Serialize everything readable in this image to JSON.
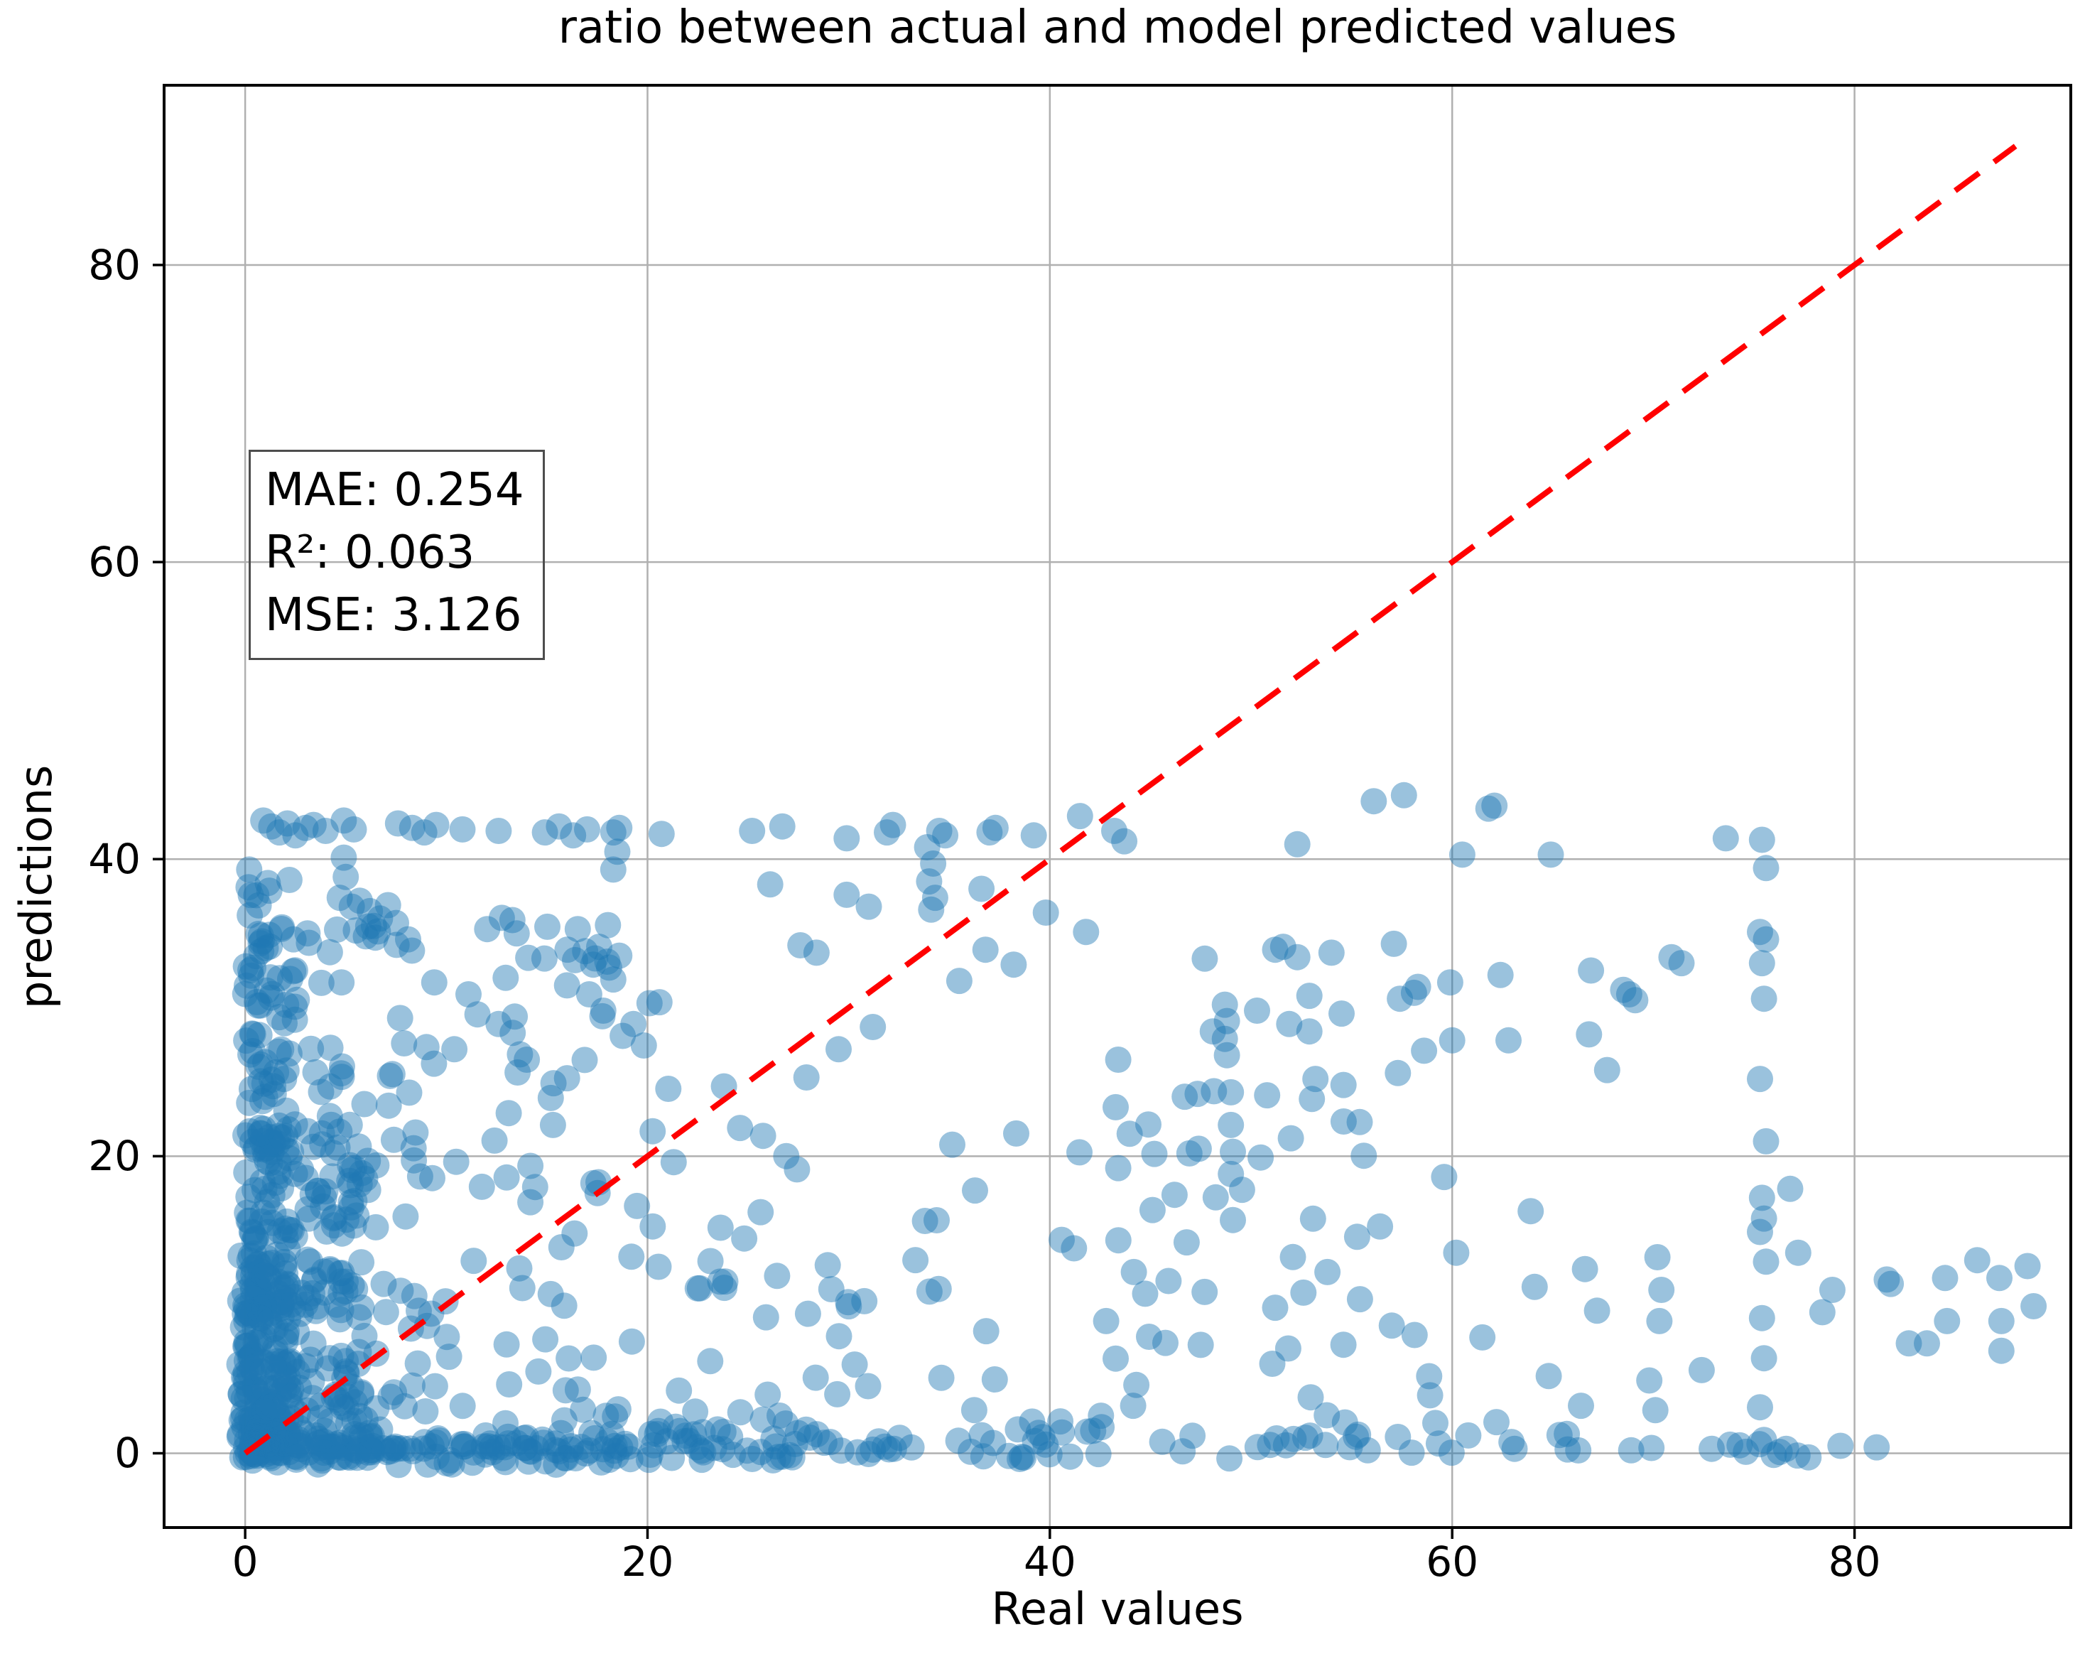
{
  "figure": {
    "title": "ratio between actual and model predicted values",
    "xlabel": "Real values",
    "ylabel": "predictions",
    "stats_box": {
      "lines": [
        "MAE: 0.254",
        "R²: 0.063",
        "MSE: 3.126"
      ]
    }
  },
  "chart_data": {
    "type": "scatter",
    "title": "ratio between actual and model predicted values",
    "xlabel": "Real values",
    "ylabel": "predictions",
    "xlim": [
      -4.03,
      90.75
    ],
    "ylim": [
      -5.0,
      92.1
    ],
    "xticks": [
      0,
      20,
      40,
      60,
      80
    ],
    "yticks": [
      0,
      20,
      40,
      60,
      80
    ],
    "grid": true,
    "legend": "none",
    "metrics": {
      "MAE": 0.254,
      "R2": 0.063,
      "MSE": 3.126
    },
    "marker": {
      "color": "#1f77b4",
      "alpha": 0.45,
      "radius_px": 18.5
    },
    "identity_line": {
      "type": "line",
      "style": "dashed",
      "color": "#ff0000",
      "from": [
        0,
        0
      ],
      "to": [
        88,
        88
      ]
    },
    "colors": {
      "grid": "#b0b0b0",
      "spine": "#000000",
      "stats_border": "#4d4d4d",
      "background": "#ffffff"
    },
    "points": [
      [
        0.9,
        42.6
      ],
      [
        1.3,
        42.2
      ],
      [
        1.7,
        41.8
      ],
      [
        2.1,
        42.4
      ],
      [
        2.5,
        41.6
      ],
      [
        3,
        42.1
      ],
      [
        3.4,
        42.3
      ],
      [
        4,
        41.9
      ],
      [
        4.9,
        42.6
      ],
      [
        5.4,
        42
      ],
      [
        7.6,
        42.4
      ],
      [
        8.3,
        42.1
      ],
      [
        8.9,
        41.8
      ],
      [
        9.5,
        42.3
      ],
      [
        10.8,
        42
      ],
      [
        12.6,
        41.9
      ],
      [
        14.9,
        41.8
      ],
      [
        15.6,
        42.2
      ],
      [
        16.3,
        41.6
      ],
      [
        17,
        42
      ],
      [
        18.3,
        41.8
      ],
      [
        18.6,
        42.1
      ],
      [
        20.7,
        41.7
      ],
      [
        25.2,
        41.9
      ],
      [
        26.7,
        42.2
      ],
      [
        29.9,
        41.4
      ],
      [
        31.9,
        41.8
      ],
      [
        32.2,
        42.3
      ],
      [
        34.5,
        41.9
      ],
      [
        34.8,
        41.6
      ],
      [
        37,
        41.8
      ],
      [
        37.3,
        42.1
      ],
      [
        39.2,
        41.6
      ],
      [
        41.5,
        42.9
      ],
      [
        43.2,
        41.9
      ],
      [
        43.7,
        41.2
      ],
      [
        52.3,
        41
      ],
      [
        56.1,
        43.9
      ],
      [
        57.6,
        44.3
      ],
      [
        61.8,
        43.4
      ],
      [
        62.1,
        43.6
      ],
      [
        60.5,
        40.3
      ],
      [
        64.9,
        40.3
      ],
      [
        73.6,
        41.4
      ],
      [
        0.2,
        39.3
      ],
      [
        2.2,
        38.6
      ],
      [
        4.9,
        40.1
      ],
      [
        5,
        38.8
      ],
      [
        18.5,
        40.5
      ],
      [
        18.3,
        39.3
      ],
      [
        26.1,
        38.3
      ],
      [
        29.9,
        37.6
      ],
      [
        31,
        36.8
      ],
      [
        33.9,
        40.8
      ],
      [
        34.2,
        39.7
      ],
      [
        34,
        38.5
      ],
      [
        34.3,
        37.4
      ],
      [
        34.1,
        36.6
      ],
      [
        36.6,
        38
      ],
      [
        16,
        31.5
      ],
      [
        16.4,
        33.2
      ],
      [
        16.9,
        33.8
      ],
      [
        17.1,
        30.9
      ],
      [
        17.3,
        32.9
      ],
      [
        17.6,
        34.1
      ],
      [
        17.8,
        29.8
      ],
      [
        18,
        33.1
      ],
      [
        18.3,
        31.9
      ],
      [
        18.6,
        33.5
      ],
      [
        19.3,
        28.9
      ],
      [
        20.1,
        30.3
      ],
      [
        4.7,
        37.4
      ],
      [
        5.3,
        36.8
      ],
      [
        5.7,
        37.2
      ],
      [
        6.2,
        36.5
      ],
      [
        6.7,
        36
      ],
      [
        7.1,
        36.9
      ],
      [
        7.5,
        35.7
      ],
      [
        8.1,
        34.6
      ],
      [
        9.4,
        31.7
      ],
      [
        7.7,
        29.3
      ],
      [
        7.9,
        27.6
      ],
      [
        7.2,
        25.4
      ],
      [
        11.1,
        30.9
      ],
      [
        12.6,
        28.9
      ],
      [
        13.4,
        29.4
      ],
      [
        10.4,
        27.2
      ],
      [
        14,
        26.5
      ],
      [
        13.1,
        22.9
      ],
      [
        15.3,
        22.1
      ],
      [
        5.5,
        35.2
      ],
      [
        6,
        34.8
      ],
      [
        6.4,
        35.5
      ],
      [
        1.2,
        34.9
      ],
      [
        1.8,
        35.3
      ],
      [
        2.4,
        34.6
      ],
      [
        0.8,
        33.8
      ],
      [
        3.1,
        35
      ],
      [
        27.6,
        34.2
      ],
      [
        28.4,
        33.7
      ],
      [
        48.1,
        28.4
      ],
      [
        51.9,
        28.9
      ],
      [
        52.9,
        28.4
      ],
      [
        54.5,
        29.6
      ],
      [
        57.4,
        30.6
      ],
      [
        57.3,
        25.6
      ],
      [
        58.6,
        27.1
      ],
      [
        60,
        27.8
      ],
      [
        62.8,
        27.8
      ],
      [
        66.8,
        28.2
      ],
      [
        67.7,
        25.8
      ],
      [
        66.9,
        32.5
      ],
      [
        62.4,
        32.2
      ],
      [
        59.9,
        31.7
      ],
      [
        58.3,
        31.4
      ],
      [
        58.1,
        31
      ],
      [
        57.1,
        34.3
      ],
      [
        68.8,
        30.9
      ],
      [
        69.1,
        30.5
      ],
      [
        68.5,
        31.2
      ],
      [
        70.9,
        33.4
      ],
      [
        71.4,
        33
      ],
      [
        49,
        24.3
      ],
      [
        49,
        22.1
      ],
      [
        49.1,
        20.3
      ],
      [
        49,
        18.8
      ],
      [
        50.8,
        24.1
      ],
      [
        53.2,
        25.2
      ],
      [
        55.4,
        22.3
      ],
      [
        43.4,
        19.2
      ],
      [
        49.1,
        15.7
      ],
      [
        63.9,
        16.3
      ],
      [
        59.6,
        18.6
      ],
      [
        46.2,
        17.4
      ],
      [
        75.4,
        41.3
      ],
      [
        75.6,
        39.4
      ],
      [
        75.3,
        35.1
      ],
      [
        75.6,
        34.6
      ],
      [
        75.4,
        33
      ],
      [
        75.5,
        30.6
      ],
      [
        75.3,
        25.2
      ],
      [
        75.6,
        21
      ],
      [
        75.4,
        17.2
      ],
      [
        75.5,
        15.8
      ],
      [
        75.3,
        14.9
      ],
      [
        75.6,
        12.9
      ],
      [
        75.4,
        9.1
      ],
      [
        75.5,
        6.4
      ],
      [
        75.3,
        3.1
      ],
      [
        75.5,
        0.9
      ],
      [
        76.8,
        17.8
      ],
      [
        77.2,
        13.5
      ],
      [
        81.6,
        11.7
      ],
      [
        81.8,
        11.4
      ],
      [
        84.5,
        11.8
      ],
      [
        84.6,
        8.9
      ],
      [
        87.2,
        11.8
      ],
      [
        87.3,
        8.9
      ],
      [
        87.3,
        6.9
      ],
      [
        82.7,
        7.4
      ],
      [
        83.6,
        7.4
      ],
      [
        78.4,
        9.5
      ],
      [
        88.6,
        12.6
      ],
      [
        88.9,
        9.9
      ],
      [
        86.1,
        13
      ],
      [
        78.9,
        11
      ],
      [
        70.2,
        13.2
      ],
      [
        70.4,
        11
      ],
      [
        70.3,
        8.9
      ],
      [
        69.8,
        4.9
      ],
      [
        70.1,
        2.9
      ],
      [
        72.4,
        5.6
      ],
      [
        55.8,
        0.2
      ],
      [
        57.3,
        1.1
      ],
      [
        60.8,
        1.2
      ],
      [
        63.1,
        0.3
      ],
      [
        65.7,
        1.3
      ],
      [
        68.9,
        0.2
      ],
      [
        72.9,
        0.3
      ],
      [
        74.6,
        0.1
      ],
      [
        76.6,
        0.3
      ],
      [
        79.3,
        0.5
      ],
      [
        81.1,
        0.4
      ],
      [
        62.2,
        2.1
      ],
      [
        66.4,
        3.2
      ],
      [
        58.9,
        3.9
      ],
      [
        64.8,
        5.2
      ],
      [
        61.5,
        7.8
      ],
      [
        67.2,
        9.6
      ],
      [
        64.1,
        11.2
      ],
      [
        66.6,
        12.4
      ],
      [
        60.2,
        13.5
      ],
      [
        53.8,
        12.2
      ],
      [
        51.2,
        9.8
      ],
      [
        47.5,
        7.3
      ],
      [
        45.9,
        11.6
      ],
      [
        44.3,
        4.6
      ],
      [
        42.8,
        8.9
      ],
      [
        41.2,
        13.8
      ],
      [
        46.8,
        14.2
      ],
      [
        21.3,
        19.6
      ],
      [
        24.6,
        21.9
      ],
      [
        27.9,
        25.3
      ],
      [
        31.2,
        28.7
      ],
      [
        36.8,
        33.9
      ],
      [
        39.8,
        36.4
      ],
      [
        35.5,
        31.8
      ],
      [
        23.8,
        24.7
      ],
      [
        29.5,
        27.2
      ],
      [
        41.8,
        35.1
      ],
      [
        47.7,
        33.3
      ],
      [
        51.2,
        33.9
      ],
      [
        52.3,
        33.4
      ],
      [
        54,
        33.7
      ],
      [
        51.6,
        34.1
      ],
      [
        48.7,
        30.2
      ],
      [
        48.8,
        29.1
      ],
      [
        48.7,
        27.9
      ],
      [
        48.8,
        26.8
      ],
      [
        50.3,
        29.8
      ],
      [
        52.9,
        30.8
      ],
      [
        43.4,
        26.5
      ],
      [
        47.4,
        20.5
      ],
      [
        38.2,
        32.9
      ]
    ],
    "dense_regions": [
      {
        "x": [
          -0.3,
          2.3
        ],
        "y": [
          -0.3,
          13.5
        ],
        "n": 110,
        "xbias": 1.2,
        "ybias": 1.25,
        "note": "solid overlapping cloud"
      },
      {
        "x": [
          0,
          5.8
        ],
        "y": [
          0,
          22.5
        ],
        "n": 150,
        "xbias": 1.25,
        "ybias": 1.5,
        "note": "solid overlapping cloud"
      },
      {
        "x": [
          0,
          9.5
        ],
        "y": [
          0,
          27
        ],
        "n": 115,
        "xbias": 1.4,
        "ybias": 1.7,
        "note": "dense cloud taper"
      },
      {
        "x": [
          0,
          1.4
        ],
        "y": [
          13,
          38.5
        ],
        "n": 55,
        "xbias": 1,
        "ybias": 1,
        "note": "solid column at x~0"
      },
      {
        "x": [
          1.2,
          2.6
        ],
        "y": [
          13,
          33
        ],
        "n": 30,
        "xbias": 1,
        "ybias": 1,
        "note": "column at x~2"
      },
      {
        "x": [
          0,
          33
        ],
        "y": [
          -0.5,
          1.5
        ],
        "n": 115,
        "xbias": 1.35,
        "ybias": 1,
        "note": "bottom band"
      },
      {
        "x": [
          0,
          21
        ],
        "y": [
          -0.8,
          0.7
        ],
        "n": 60,
        "xbias": 1.15,
        "ybias": 1,
        "note": "bottom band solid part"
      },
      {
        "x": [
          21,
          45
        ],
        "y": [
          -0.5,
          1.8
        ],
        "n": 40,
        "xbias": 1,
        "ybias": 1,
        "note": "bottom band patchy"
      },
      {
        "x": [
          45,
          78.5
        ],
        "y": [
          -0.4,
          1.3
        ],
        "n": 30,
        "xbias": 1,
        "ybias": 1,
        "note": "bottom band sparse"
      },
      {
        "x": [
          2,
          30
        ],
        "y": [
          2,
          24
        ],
        "n": 95,
        "xbias": 1.45,
        "ybias": 1.55,
        "note": "mid scatter fading"
      },
      {
        "x": [
          3,
          22
        ],
        "y": [
          24,
          35.5
        ],
        "n": 28,
        "xbias": 1.4,
        "ybias": 1,
        "note": "upper-left scatter"
      },
      {
        "x": [
          30,
          60
        ],
        "y": [
          2,
          22
        ],
        "n": 50,
        "xbias": 1,
        "ybias": 1.35,
        "note": "right-mid scatter"
      },
      {
        "x": [
          0.5,
          20
        ],
        "y": [
          33.5,
          36.2
        ],
        "n": 16,
        "xbias": 1.3,
        "ybias": 1,
        "note": "band y~35"
      },
      {
        "x": [
          22,
          30
        ],
        "y": [
          11,
          16
        ],
        "n": 10,
        "xbias": 1,
        "ybias": 1,
        "note": "patch"
      },
      {
        "x": [
          40,
          55
        ],
        "y": [
          16,
          26
        ],
        "n": 12,
        "xbias": 1,
        "ybias": 1,
        "note": "patch"
      }
    ]
  }
}
